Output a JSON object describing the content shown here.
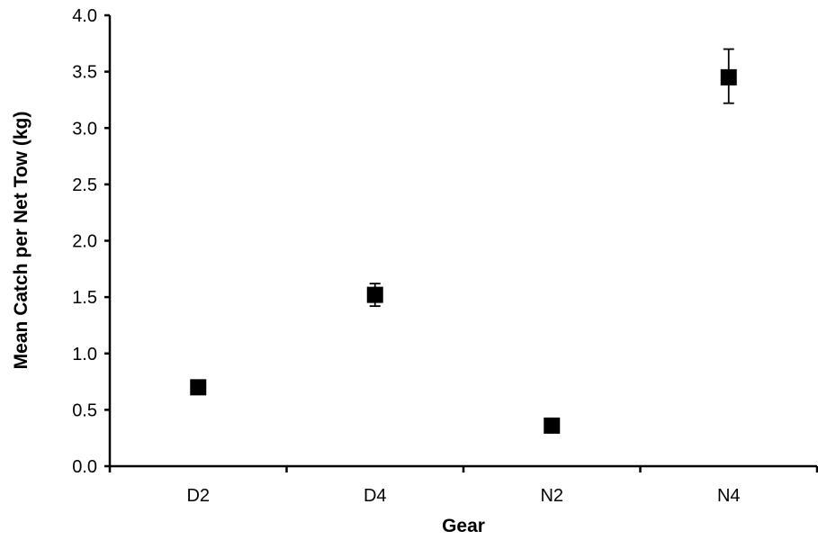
{
  "chart_data": {
    "type": "scatter",
    "title": "",
    "xlabel": "Gear",
    "ylabel": "Mean Catch per Net Tow (kg)",
    "categories": [
      "D2",
      "D4",
      "N2",
      "N4"
    ],
    "values": [
      0.7,
      1.52,
      0.36,
      3.45
    ],
    "error_low": [
      0.67,
      1.42,
      0.33,
      3.22
    ],
    "error_high": [
      0.73,
      1.62,
      0.39,
      3.7
    ],
    "ylim": [
      0.0,
      4.0
    ],
    "yticks": [
      "0.0",
      "0.5",
      "1.0",
      "1.5",
      "2.0",
      "2.5",
      "3.0",
      "3.5",
      "4.0"
    ],
    "marker": "square",
    "marker_color": "#000000",
    "grid": false,
    "legend": "none"
  }
}
